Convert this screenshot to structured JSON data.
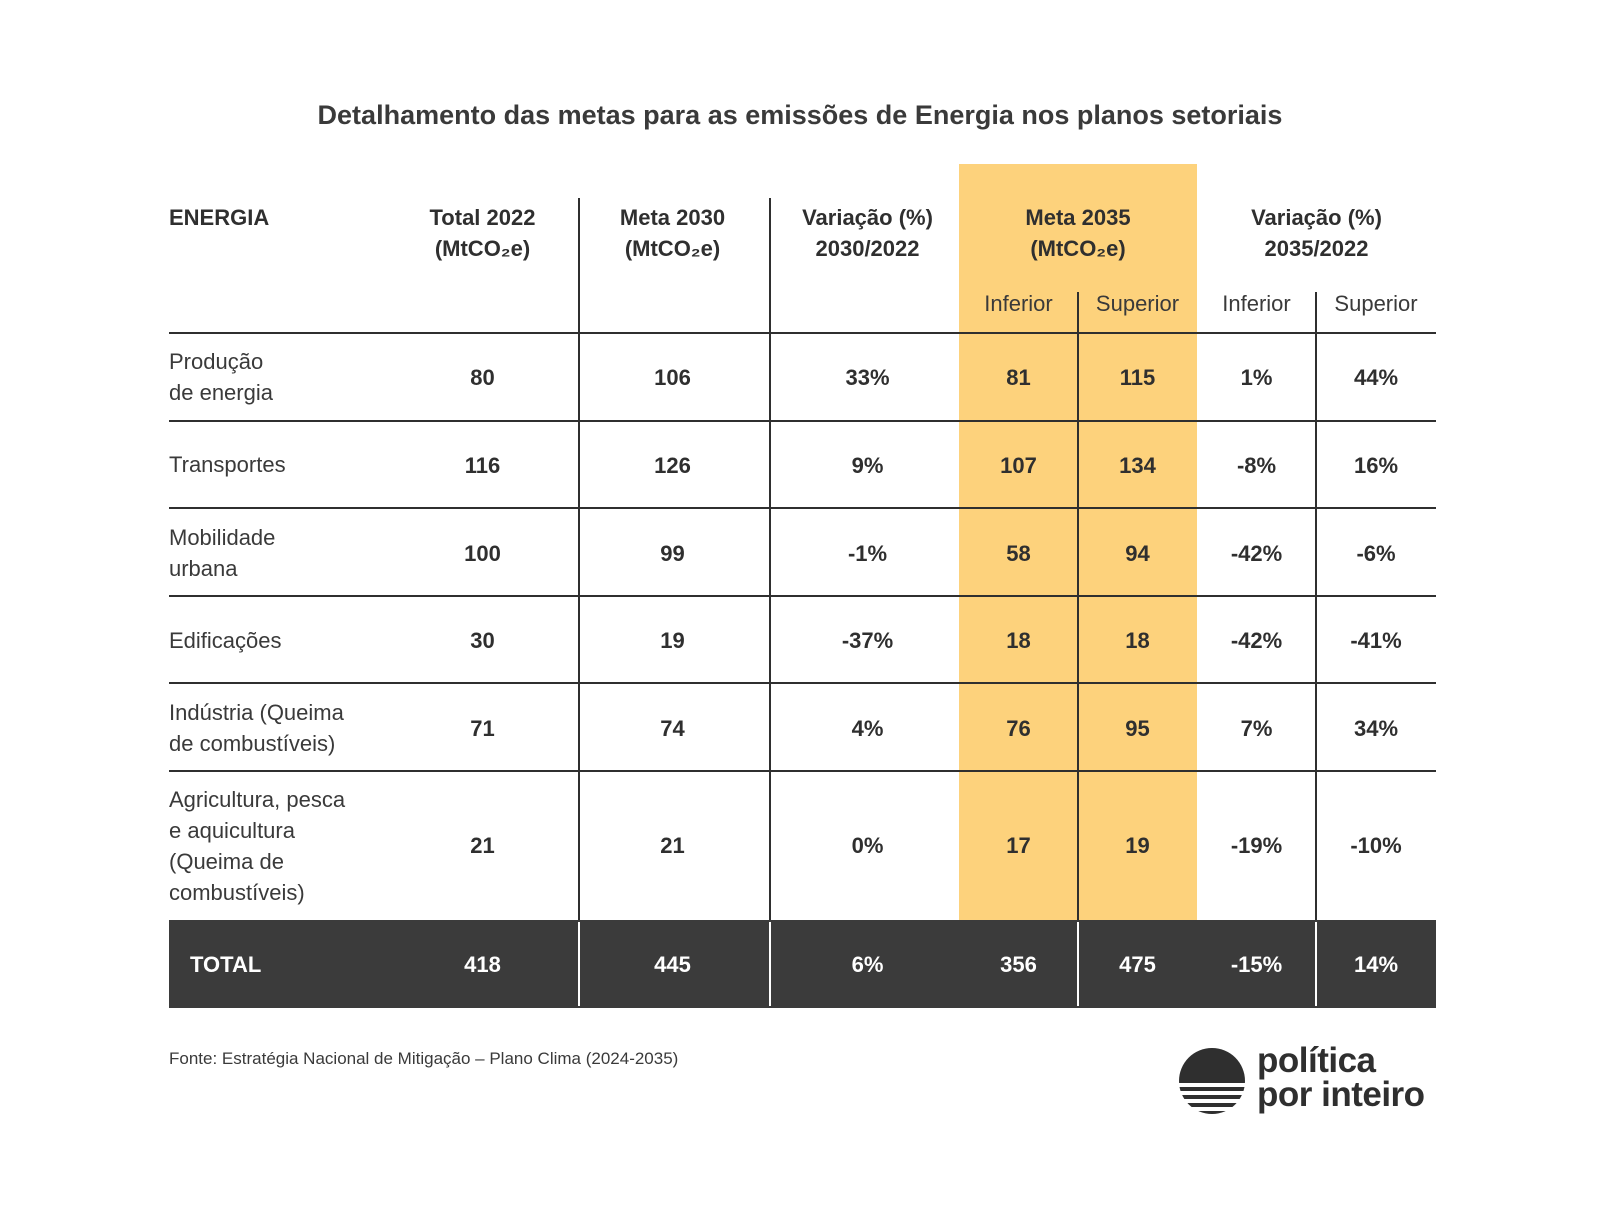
{
  "title": "Detalhamento das metas para as emissões de Energia nos planos setoriais",
  "columns": {
    "energia": "ENERGIA",
    "total2022": [
      "Total 2022",
      "(MtCO₂e)"
    ],
    "meta2030": [
      "Meta 2030",
      "(MtCO₂e)"
    ],
    "var2030": [
      "Variação (%)",
      "2030/2022"
    ],
    "meta2035": [
      "Meta 2035",
      "(MtCO₂e)"
    ],
    "var2035": [
      "Variação (%)",
      "2035/2022"
    ],
    "inferior": "Inferior",
    "superior": "Superior"
  },
  "rows": [
    {
      "label": [
        "Produção",
        "de energia"
      ],
      "total2022": "80",
      "meta2030": "106",
      "var2030": "33%",
      "m35_inf": "81",
      "m35_sup": "115",
      "v35_inf": "1%",
      "v35_sup": "44%"
    },
    {
      "label": [
        "Transportes"
      ],
      "total2022": "116",
      "meta2030": "126",
      "var2030": "9%",
      "m35_inf": "107",
      "m35_sup": "134",
      "v35_inf": "-8%",
      "v35_sup": "16%"
    },
    {
      "label": [
        "Mobilidade",
        "urbana"
      ],
      "total2022": "100",
      "meta2030": "99",
      "var2030": "-1%",
      "m35_inf": "58",
      "m35_sup": "94",
      "v35_inf": "-42%",
      "v35_sup": "-6%"
    },
    {
      "label": [
        "Edificações"
      ],
      "total2022": "30",
      "meta2030": "19",
      "var2030": "-37%",
      "m35_inf": "18",
      "m35_sup": "18",
      "v35_inf": "-42%",
      "v35_sup": "-41%"
    },
    {
      "label": [
        "Indústria (Queima",
        "de combustíveis)"
      ],
      "total2022": "71",
      "meta2030": "74",
      "var2030": "4%",
      "m35_inf": "76",
      "m35_sup": "95",
      "v35_inf": "7%",
      "v35_sup": "34%"
    },
    {
      "label": [
        "Agricultura, pesca",
        "e aquicultura",
        "(Queima de",
        "combustíveis)"
      ],
      "total2022": "21",
      "meta2030": "21",
      "var2030": "0%",
      "m35_inf": "17",
      "m35_sup": "19",
      "v35_inf": "-19%",
      "v35_sup": "-10%"
    }
  ],
  "total": {
    "label": "TOTAL",
    "total2022": "418",
    "meta2030": "445",
    "var2030": "6%",
    "m35_inf": "356",
    "m35_sup": "475",
    "v35_inf": "-15%",
    "v35_sup": "14%"
  },
  "source": "Fonte: Estratégia Nacional de Mitigação – Plano Clima (2024-2035)",
  "logo": {
    "line1": "política",
    "line2": "por inteiro"
  },
  "colors": {
    "highlight": "#fdd27c",
    "total_band": "#3b3b3b",
    "text": "#2f2f2f"
  }
}
